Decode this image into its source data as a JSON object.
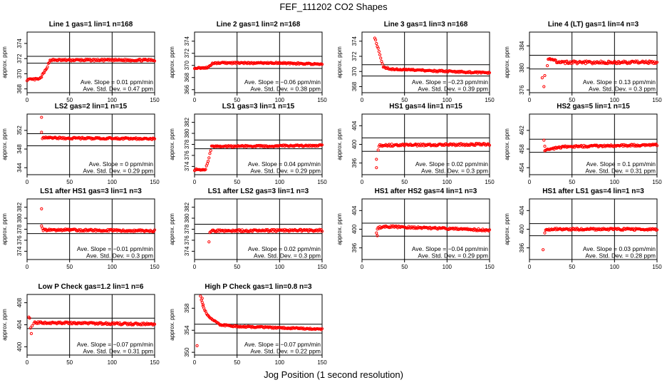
{
  "title": "FEF_111202  CO2 Shapes",
  "xlabel": "Jog Position (1 second resolution)",
  "colors": {
    "points": "#ff0000",
    "axes": "#000000"
  },
  "chart_data": [
    {
      "type": "scatter",
      "title": "Line 1 gas=1 lin=1 n=168",
      "ylabel": "approx. ppm",
      "xlim": [
        0,
        150
      ],
      "xticks": [
        0,
        50,
        100,
        150
      ],
      "ylim": [
        367.5,
        375.5
      ],
      "yticks": [
        368,
        370,
        372,
        374
      ],
      "hlines": [
        371.4,
        372.3
      ],
      "slope_text": "Ave. Slope = 0.01  ppm/min",
      "std_text": "Ave. Std. Dev. = 0.47  ppm",
      "profile": [
        [
          0,
          369.2
        ],
        [
          15,
          369.3
        ],
        [
          22,
          370.5
        ],
        [
          27,
          371.8
        ],
        [
          150,
          371.8
        ]
      ],
      "noise": 0.12
    },
    {
      "type": "scatter",
      "title": "Line 2 gas=1 lin=2 n=168",
      "ylabel": "approx. ppm",
      "xlim": [
        0,
        150
      ],
      "xticks": [
        0,
        50,
        100,
        150
      ],
      "ylim": [
        365.5,
        375.5
      ],
      "yticks": [
        366,
        368,
        370,
        372,
        374
      ],
      "hlines": [
        369.5,
        371.5
      ],
      "slope_text": "Ave. Slope = −0.06  ppm/min",
      "std_text": "Ave. Std. Dev. = 0.38  ppm",
      "profile": [
        [
          0,
          369.6
        ],
        [
          15,
          369.6
        ],
        [
          22,
          370.4
        ],
        [
          100,
          370.4
        ],
        [
          150,
          370.2
        ]
      ],
      "noise": 0.12
    },
    {
      "type": "scatter",
      "title": "Line 3 gas=1 lin=3 n=168",
      "ylabel": "approx. ppm",
      "xlim": [
        0,
        150
      ],
      "xticks": [
        0,
        50,
        100,
        150
      ],
      "ylim": [
        367.2,
        375.2
      ],
      "yticks": [
        368,
        370,
        372,
        374
      ],
      "hlines": [
        369.4,
        370.9
      ],
      "slope_text": "Ave. Slope = −0.23  ppm/min",
      "std_text": "Ave. Std. Dev. = 0.39  ppm",
      "profile": [
        [
          15,
          374.5
        ],
        [
          20,
          372.6
        ],
        [
          25,
          370.6
        ],
        [
          35,
          370.3
        ],
        [
          150,
          369.8
        ]
      ],
      "noise": 0.1
    },
    {
      "type": "scatter",
      "title": "Line 4 (LT) gas=1 lin=4 n=3",
      "ylabel": "approx. ppm",
      "xlim": [
        0,
        150
      ],
      "xticks": [
        0,
        50,
        100,
        150
      ],
      "ylim": [
        375.5,
        386.5
      ],
      "yticks": [
        376,
        380,
        384
      ],
      "hlines": [
        379.8,
        382.3
      ],
      "slope_text": "Ave. Slope = 0.13  ppm/min",
      "std_text": "Ave. Std. Dev. = 0.3  ppm",
      "profile": [
        [
          22,
          381.8
        ],
        [
          35,
          381.0
        ],
        [
          150,
          381.0
        ]
      ],
      "noise": 0.25,
      "extra_points": [
        [
          15,
          378.2
        ],
        [
          18,
          378.6
        ],
        [
          17,
          376.6
        ],
        [
          21,
          380.4
        ]
      ]
    },
    {
      "type": "scatter",
      "title": "LS2 gas=2 lin=1 n=15",
      "ylabel": "approx. ppm",
      "xlim": [
        0,
        150
      ],
      "xticks": [
        0,
        50,
        100,
        150
      ],
      "ylim": [
        342.5,
        355.5
      ],
      "yticks": [
        344,
        348,
        352
      ],
      "hlines": [
        348.7,
        351.3
      ],
      "slope_text": "Ave. Slope = 0  ppm/min",
      "std_text": "Ave. Std. Dev. = 0.29  ppm",
      "profile": [
        [
          18,
          350.4
        ],
        [
          150,
          350.2
        ]
      ],
      "noise": 0.18,
      "extra_points": [
        [
          17,
          354.8
        ],
        [
          17,
          351.6
        ]
      ]
    },
    {
      "type": "scatter",
      "title": "LS1 gas=3 lin=1 n=15",
      "ylabel": "approx. ppm",
      "xlim": [
        0,
        150
      ],
      "xticks": [
        0,
        50,
        100,
        150
      ],
      "ylim": [
        372.5,
        383.5
      ],
      "yticks": [
        374,
        376,
        378,
        380,
        382
      ],
      "hlines": [
        377.2,
        378.8
      ],
      "slope_text": "Ave. Slope = 0.04  ppm/min",
      "std_text": "Ave. Std. Dev. = 0.29  ppm",
      "profile": [
        [
          0,
          373.4
        ],
        [
          13,
          373.5
        ],
        [
          17,
          375.5
        ],
        [
          20,
          377.6
        ],
        [
          150,
          377.8
        ]
      ],
      "noise": 0.15
    },
    {
      "type": "scatter",
      "title": "HS1 gas=4 lin=1 n=15",
      "ylabel": "approx. ppm",
      "xlim": [
        0,
        150
      ],
      "xticks": [
        0,
        50,
        100,
        150
      ],
      "ylim": [
        393.5,
        406.5
      ],
      "yticks": [
        396,
        400,
        404
      ],
      "hlines": [
        398.5,
        401.4
      ],
      "slope_text": "Ave. Slope = 0.02  ppm/min",
      "std_text": "Ave. Std. Dev. = 0.3  ppm",
      "profile": [
        [
          20,
          399.8
        ],
        [
          150,
          400.0
        ]
      ],
      "noise": 0.22,
      "extra_points": [
        [
          17,
          395.0
        ],
        [
          17,
          396.8
        ],
        [
          19,
          398.8
        ]
      ]
    },
    {
      "type": "scatter",
      "title": "HS2 gas=5 lin=1 n=15",
      "ylabel": "approx. ppm",
      "xlim": [
        0,
        150
      ],
      "xticks": [
        0,
        50,
        100,
        150
      ],
      "ylim": [
        452.5,
        465.5
      ],
      "yticks": [
        454,
        458,
        462
      ],
      "hlines": [
        457.3,
        460.1
      ],
      "slope_text": "Ave. Slope = 0.1  ppm/min",
      "std_text": "Ave. Std. Dev. = 0.31  ppm",
      "profile": [
        [
          18,
          457.8
        ],
        [
          40,
          458.5
        ],
        [
          150,
          458.9
        ]
      ],
      "noise": 0.2,
      "extra_points": [
        [
          17,
          459.9
        ],
        [
          18,
          458.6
        ]
      ]
    },
    {
      "type": "scatter",
      "title": "LS1 after HS1 gas=3 lin=1 n=3",
      "ylabel": "approx. ppm",
      "xlim": [
        0,
        150
      ],
      "xticks": [
        0,
        50,
        100,
        150
      ],
      "ylim": [
        372.5,
        383.5
      ],
      "yticks": [
        374,
        376,
        378,
        380,
        382
      ],
      "hlines": [
        377.2,
        379.0
      ],
      "slope_text": "Ave. Slope = −0.01  ppm/min",
      "std_text": "Ave. Std. Dev. = 0.3  ppm",
      "profile": [
        [
          19,
          377.9
        ],
        [
          150,
          377.7
        ]
      ],
      "noise": 0.18,
      "extra_points": [
        [
          17,
          381.7
        ],
        [
          17,
          378.6
        ],
        [
          18,
          378.2
        ]
      ]
    },
    {
      "type": "scatter",
      "title": "LS1 after LS2 gas=3 lin=1 n=3",
      "ylabel": "approx. ppm",
      "xlim": [
        0,
        150
      ],
      "xticks": [
        0,
        50,
        100,
        150
      ],
      "ylim": [
        372.5,
        383.5
      ],
      "yticks": [
        374,
        376,
        378,
        380,
        382
      ],
      "hlines": [
        377.2,
        378.9
      ],
      "slope_text": "Ave. Slope = 0.02  ppm/min",
      "std_text": "Ave. Std. Dev. = 0.3  ppm",
      "profile": [
        [
          19,
          377.7
        ],
        [
          150,
          377.8
        ]
      ],
      "noise": 0.18,
      "extra_points": [
        [
          17,
          375.7
        ],
        [
          18,
          377.4
        ]
      ]
    },
    {
      "type": "scatter",
      "title": "HS1 after HS2 gas=4 lin=1 n=3",
      "ylabel": "approx. ppm",
      "xlim": [
        0,
        150
      ],
      "xticks": [
        0,
        50,
        100,
        150
      ],
      "ylim": [
        393.5,
        406.5
      ],
      "yticks": [
        396,
        400,
        404
      ],
      "hlines": [
        398.5,
        401.3
      ],
      "slope_text": "Ave. Slope = −0.04  ppm/min",
      "std_text": "Ave. Std. Dev. = 0.29  ppm",
      "profile": [
        [
          18,
          400.2
        ],
        [
          25,
          400.6
        ],
        [
          150,
          399.8
        ]
      ],
      "noise": 0.2,
      "extra_points": [
        [
          17,
          399.2
        ],
        [
          18,
          398.6
        ]
      ]
    },
    {
      "type": "scatter",
      "title": "HS1 after LS1 gas=4 lin=1 n=3",
      "ylabel": "approx. ppm",
      "xlim": [
        0,
        150
      ],
      "xticks": [
        0,
        50,
        100,
        150
      ],
      "ylim": [
        393.5,
        406.5
      ],
      "yticks": [
        396,
        400,
        404
      ],
      "hlines": [
        398.6,
        401.2
      ],
      "slope_text": "Ave. Slope = 0.03  ppm/min",
      "std_text": "Ave. Std. Dev. = 0.28  ppm",
      "profile": [
        [
          19,
          400.0
        ],
        [
          150,
          400.0
        ]
      ],
      "noise": 0.2,
      "extra_points": [
        [
          16,
          395.6
        ],
        [
          18,
          399.2
        ]
      ]
    },
    {
      "type": "scatter",
      "title": "Low P Check gas=1.2 lin=1 n=6",
      "ylabel": "approx. ppm",
      "xlim": [
        0,
        150
      ],
      "xticks": [
        0,
        50,
        100,
        150
      ],
      "ylim": [
        398.5,
        409.5
      ],
      "yticks": [
        400,
        404,
        408
      ],
      "hlines": [
        403.3,
        405.2
      ],
      "slope_text": "Ave. Slope = −0.07  ppm/min",
      "std_text": "Ave. Std. Dev. = 0.31  ppm",
      "profile": [
        [
          8,
          404.4
        ],
        [
          150,
          404.1
        ]
      ],
      "noise": 0.18,
      "extra_points": [
        [
          2,
          405.4
        ],
        [
          3,
          405.2
        ],
        [
          4,
          403.4
        ],
        [
          5,
          402.4
        ],
        [
          6,
          403.8
        ]
      ]
    },
    {
      "type": "scatter",
      "title": "High P Check gas=1 lin=0.8 n=3",
      "ylabel": "approx. ppm",
      "xlim": [
        0,
        150
      ],
      "xticks": [
        0,
        50,
        100,
        150
      ],
      "ylim": [
        349.5,
        360.5
      ],
      "yticks": [
        350,
        354,
        358
      ],
      "hlines": [
        353.5,
        355.1
      ],
      "slope_text": "Ave. Slope = −0.07  ppm/min",
      "std_text": "Ave. Std. Dev. = 0.22  ppm",
      "profile": [
        [
          8,
          359.6
        ],
        [
          12,
          357.6
        ],
        [
          18,
          356.2
        ],
        [
          30,
          355.0
        ],
        [
          50,
          354.7
        ],
        [
          150,
          354.2
        ]
      ],
      "noise": 0.12,
      "extra_points": [
        [
          3,
          351.2
        ],
        [
          7,
          360.2
        ],
        [
          9,
          359.8
        ],
        [
          10,
          358.4
        ]
      ]
    }
  ]
}
